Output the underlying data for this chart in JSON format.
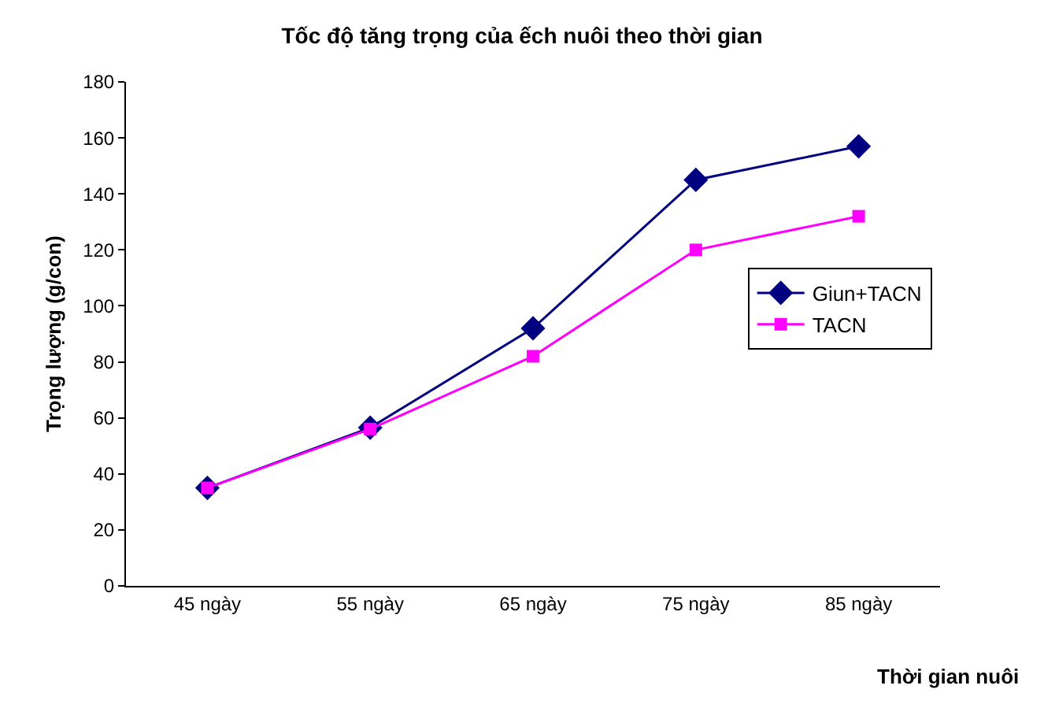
{
  "chart_data": {
    "type": "line",
    "title": "Tốc độ tăng trọng của ếch nuôi theo thời gian",
    "xlabel": "Thời gian nuôi",
    "ylabel": "Trọng lượng (g/con)",
    "categories": [
      "45 ngày",
      "55 ngày",
      "65 ngày",
      "75 ngày",
      "85 ngày"
    ],
    "series": [
      {
        "name": "Giun+TACN",
        "color": "#000080",
        "marker": "diamond",
        "values": [
          35,
          56.5,
          92,
          145,
          157
        ]
      },
      {
        "name": "TACN",
        "color": "#ff00ff",
        "marker": "square",
        "values": [
          35,
          56,
          82,
          120,
          132
        ]
      }
    ],
    "ylim": [
      0,
      180
    ],
    "yticks": [
      0,
      20,
      40,
      60,
      80,
      100,
      120,
      140,
      160,
      180
    ],
    "grid": false,
    "legend": "right",
    "line_style": "solid"
  }
}
